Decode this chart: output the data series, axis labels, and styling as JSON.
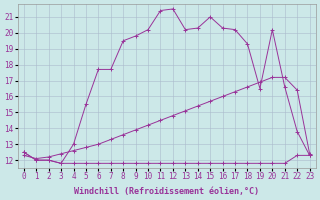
{
  "background_color": "#cce8e8",
  "grid_color": "#aabbcc",
  "line_color": "#993399",
  "xlabel": "Windchill (Refroidissement éolien,°C)",
  "xlim": [
    -0.5,
    23.5
  ],
  "ylim": [
    11.5,
    21.8
  ],
  "yticks": [
    12,
    13,
    14,
    15,
    16,
    17,
    18,
    19,
    20,
    21
  ],
  "xticks": [
    0,
    1,
    2,
    3,
    4,
    5,
    6,
    7,
    8,
    9,
    10,
    11,
    12,
    13,
    14,
    15,
    16,
    17,
    18,
    19,
    20,
    21,
    22,
    23
  ],
  "curve1_x": [
    0,
    1,
    2,
    3,
    4,
    5,
    6,
    7,
    8,
    9,
    10,
    11,
    12,
    13,
    14,
    15,
    16,
    17,
    18,
    19,
    20,
    21,
    22,
    23
  ],
  "curve1_y": [
    12.5,
    12.0,
    12.0,
    11.8,
    13.0,
    15.5,
    17.7,
    17.7,
    19.5,
    19.8,
    20.2,
    21.4,
    21.5,
    20.2,
    20.3,
    21.0,
    20.3,
    20.2,
    19.3,
    16.5,
    20.2,
    16.6,
    13.8,
    12.3
  ],
  "curve2_x": [
    0,
    1,
    2,
    3,
    4,
    5,
    6,
    7,
    8,
    9,
    10,
    11,
    12,
    13,
    14,
    15,
    16,
    17,
    18,
    19,
    20,
    21,
    22,
    23
  ],
  "curve2_y": [
    12.3,
    12.1,
    12.2,
    12.4,
    12.6,
    12.8,
    13.0,
    13.3,
    13.6,
    13.9,
    14.2,
    14.5,
    14.8,
    15.1,
    15.4,
    15.7,
    16.0,
    16.3,
    16.6,
    16.9,
    17.2,
    17.2,
    16.4,
    12.4
  ],
  "curve3_x": [
    0,
    1,
    2,
    3,
    4,
    5,
    6,
    7,
    8,
    9,
    10,
    11,
    12,
    13,
    14,
    15,
    16,
    17,
    18,
    19,
    20,
    21,
    22,
    23
  ],
  "curve3_y": [
    12.5,
    12.0,
    12.0,
    11.8,
    11.8,
    11.8,
    11.8,
    11.8,
    11.8,
    11.8,
    11.8,
    11.8,
    11.8,
    11.8,
    11.8,
    11.8,
    11.8,
    11.8,
    11.8,
    11.8,
    11.8,
    11.8,
    12.3,
    12.3
  ],
  "xlabel_fontsize": 6,
  "tick_fontsize": 5.5
}
